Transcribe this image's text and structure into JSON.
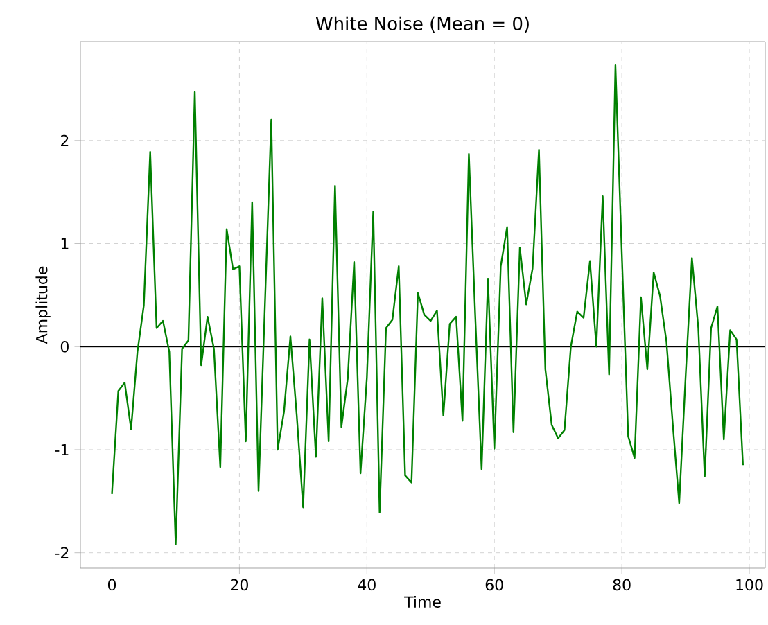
{
  "chart_data": {
    "type": "line",
    "title": "White Noise (Mean = 0)",
    "xlabel": "Time",
    "ylabel": "Amplitude",
    "x": [
      0,
      1,
      2,
      3,
      4,
      5,
      6,
      7,
      8,
      9,
      10,
      11,
      12,
      13,
      14,
      15,
      16,
      17,
      18,
      19,
      20,
      21,
      22,
      23,
      24,
      25,
      26,
      27,
      28,
      29,
      30,
      31,
      32,
      33,
      34,
      35,
      36,
      37,
      38,
      39,
      40,
      41,
      42,
      43,
      44,
      45,
      46,
      47,
      48,
      49,
      50,
      51,
      52,
      53,
      54,
      55,
      56,
      57,
      58,
      59,
      60,
      61,
      62,
      63,
      64,
      65,
      66,
      67,
      68,
      69,
      70,
      71,
      72,
      73,
      74,
      75,
      76,
      77,
      78,
      79,
      80,
      81,
      82,
      83,
      84,
      85,
      86,
      87,
      88,
      89,
      90,
      91,
      92,
      93,
      94,
      95,
      96,
      97,
      98,
      99
    ],
    "series": [
      {
        "color": "#008000",
        "values": [
          -1.43,
          -0.43,
          -0.35,
          -0.8,
          -0.05,
          0.4,
          1.89,
          0.18,
          0.25,
          -0.05,
          -1.92,
          -0.02,
          0.06,
          2.47,
          -0.18,
          0.29,
          -0.02,
          -1.17,
          1.14,
          0.75,
          0.78,
          -0.92,
          1.4,
          -1.4,
          0.4,
          2.2,
          -1.0,
          -0.63,
          0.1,
          -0.67,
          -1.56,
          0.07,
          -1.07,
          0.47,
          -0.92,
          1.56,
          -0.78,
          -0.31,
          0.82,
          -1.23,
          -0.3,
          1.31,
          -1.61,
          0.18,
          0.26,
          0.78,
          -1.25,
          -1.32,
          0.52,
          0.31,
          0.25,
          0.35,
          -0.67,
          0.22,
          0.29,
          -0.72,
          1.87,
          0.3,
          -1.19,
          0.66,
          -0.99,
          0.78,
          1.16,
          -0.83,
          0.96,
          0.41,
          0.76,
          1.91,
          -0.22,
          -0.76,
          -0.89,
          -0.81,
          0.0,
          0.34,
          0.28,
          0.83,
          0.0,
          1.46,
          -0.27,
          2.73,
          0.9,
          -0.87,
          -1.08,
          0.48,
          -0.22,
          0.72,
          0.49,
          0.05,
          -0.76,
          -1.52,
          -0.3,
          0.86,
          0.18,
          -1.26,
          0.18,
          0.39,
          -0.9,
          0.16,
          0.07,
          -1.15
        ]
      }
    ],
    "xlim": [
      -4.95,
      102.5
    ],
    "ylim": [
      -2.15,
      2.96
    ],
    "xticks": [
      0,
      20,
      40,
      60,
      80,
      100
    ],
    "yticks": [
      -2,
      -1,
      0,
      1,
      2
    ],
    "ref_lines": [
      {
        "axis": "y",
        "value": 0,
        "color": "#000000"
      }
    ],
    "grid": true,
    "marker": "none",
    "line_style": "solid"
  }
}
